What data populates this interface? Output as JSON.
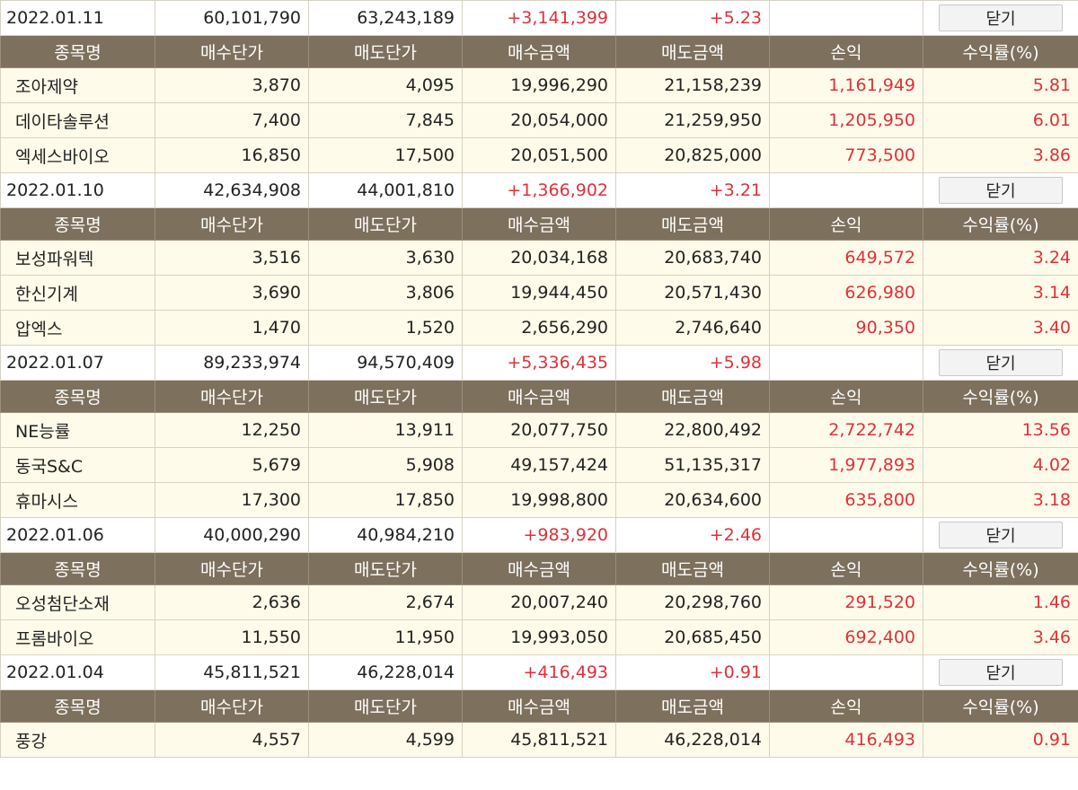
{
  "table_header": [
    "종목명",
    "매수단가",
    "매도단가",
    "매수금액",
    "매도금액",
    "손익",
    "수익률(%)"
  ],
  "close_label": "닫기",
  "days": [
    {
      "date": "2022.01.11",
      "buy_total": "60,101,790",
      "sell_total": "63,243,189",
      "profit": "+3,141,399",
      "rate": "+5.23",
      "items": [
        {
          "name": "조아제약",
          "buy_price": "3,870",
          "sell_price": "4,095",
          "buy_amount": "19,996,290",
          "sell_amount": "21,158,239",
          "profit": "1,161,949",
          "rate": "5.81"
        },
        {
          "name": "데이타솔루션",
          "buy_price": "7,400",
          "sell_price": "7,845",
          "buy_amount": "20,054,000",
          "sell_amount": "21,259,950",
          "profit": "1,205,950",
          "rate": "6.01"
        },
        {
          "name": "엑세스바이오",
          "buy_price": "16,850",
          "sell_price": "17,500",
          "buy_amount": "20,051,500",
          "sell_amount": "20,825,000",
          "profit": "773,500",
          "rate": "3.86"
        }
      ]
    },
    {
      "date": "2022.01.10",
      "buy_total": "42,634,908",
      "sell_total": "44,001,810",
      "profit": "+1,366,902",
      "rate": "+3.21",
      "items": [
        {
          "name": "보성파워텍",
          "buy_price": "3,516",
          "sell_price": "3,630",
          "buy_amount": "20,034,168",
          "sell_amount": "20,683,740",
          "profit": "649,572",
          "rate": "3.24"
        },
        {
          "name": "한신기계",
          "buy_price": "3,690",
          "sell_price": "3,806",
          "buy_amount": "19,944,450",
          "sell_amount": "20,571,430",
          "profit": "626,980",
          "rate": "3.14"
        },
        {
          "name": "압엑스",
          "buy_price": "1,470",
          "sell_price": "1,520",
          "buy_amount": "2,656,290",
          "sell_amount": "2,746,640",
          "profit": "90,350",
          "rate": "3.40"
        }
      ]
    },
    {
      "date": "2022.01.07",
      "buy_total": "89,233,974",
      "sell_total": "94,570,409",
      "profit": "+5,336,435",
      "rate": "+5.98",
      "items": [
        {
          "name": "NE능률",
          "buy_price": "12,250",
          "sell_price": "13,911",
          "buy_amount": "20,077,750",
          "sell_amount": "22,800,492",
          "profit": "2,722,742",
          "rate": "13.56"
        },
        {
          "name": "동국S&C",
          "buy_price": "5,679",
          "sell_price": "5,908",
          "buy_amount": "49,157,424",
          "sell_amount": "51,135,317",
          "profit": "1,977,893",
          "rate": "4.02"
        },
        {
          "name": "휴마시스",
          "buy_price": "17,300",
          "sell_price": "17,850",
          "buy_amount": "19,998,800",
          "sell_amount": "20,634,600",
          "profit": "635,800",
          "rate": "3.18"
        }
      ]
    },
    {
      "date": "2022.01.06",
      "buy_total": "40,000,290",
      "sell_total": "40,984,210",
      "profit": "+983,920",
      "rate": "+2.46",
      "items": [
        {
          "name": "오성첨단소재",
          "buy_price": "2,636",
          "sell_price": "2,674",
          "buy_amount": "20,007,240",
          "sell_amount": "20,298,760",
          "profit": "291,520",
          "rate": "1.46"
        },
        {
          "name": "프롬바이오",
          "buy_price": "11,550",
          "sell_price": "11,950",
          "buy_amount": "19,993,050",
          "sell_amount": "20,685,450",
          "profit": "692,400",
          "rate": "3.46"
        }
      ]
    },
    {
      "date": "2022.01.04",
      "buy_total": "45,811,521",
      "sell_total": "46,228,014",
      "profit": "+416,493",
      "rate": "+0.91",
      "items": [
        {
          "name": "풍강",
          "buy_price": "4,557",
          "sell_price": "4,599",
          "buy_amount": "45,811,521",
          "sell_amount": "46,228,014",
          "profit": "416,493",
          "rate": "0.91"
        }
      ]
    }
  ],
  "colors": {
    "header_bg": "#7d705c",
    "row_bg": "#fffbea",
    "positive": "#e0303a"
  }
}
